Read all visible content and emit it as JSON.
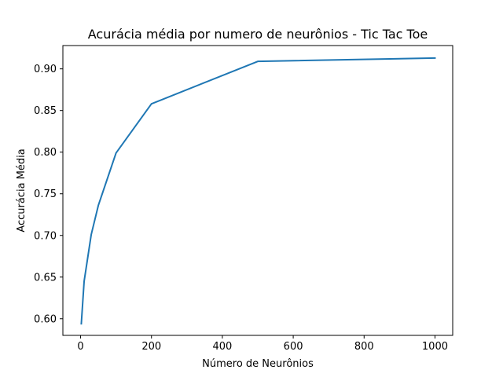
{
  "chart_data": {
    "type": "line",
    "title": "Acurácia média por numero de neurônios - Tic Tac Toe",
    "xlabel": "Número de Neurônios",
    "ylabel": "Accurácia Média",
    "xlim": [
      -50,
      1050
    ],
    "ylim": [
      0.58,
      0.928
    ],
    "xticks": [
      0,
      200,
      400,
      600,
      800,
      1000
    ],
    "xtick_labels": [
      "0",
      "200",
      "400",
      "600",
      "800",
      "1000"
    ],
    "yticks": [
      0.6,
      0.65,
      0.7,
      0.75,
      0.8,
      0.85,
      0.9
    ],
    "ytick_labels": [
      "0.60",
      "0.65",
      "0.70",
      "0.75",
      "0.80",
      "0.85",
      "0.90"
    ],
    "grid": false,
    "series": [
      {
        "color": "#1f77b4",
        "x": [
          2,
          10,
          30,
          50,
          100,
          200,
          500,
          1000
        ],
        "y": [
          0.594,
          0.645,
          0.701,
          0.736,
          0.799,
          0.858,
          0.909,
          0.913
        ]
      }
    ]
  }
}
